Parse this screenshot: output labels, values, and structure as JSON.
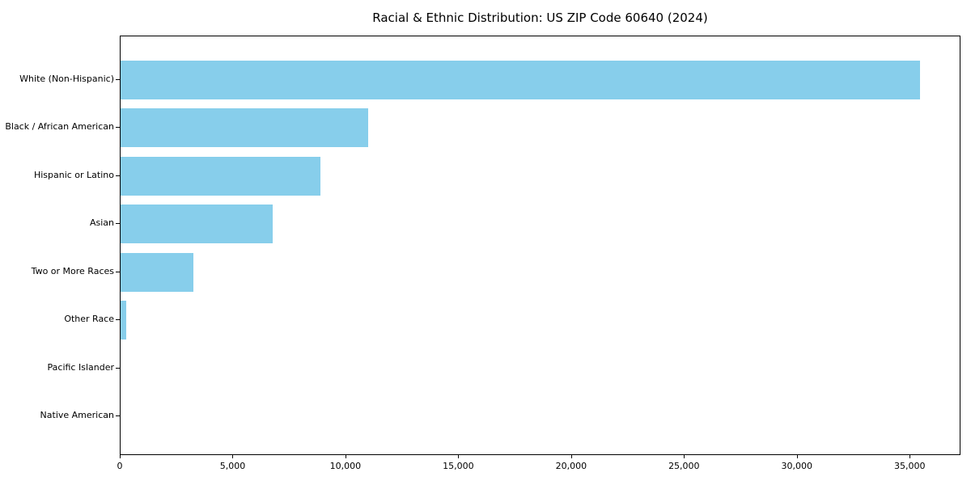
{
  "figure": {
    "title": "Racial & Ethnic Distribution: US ZIP Code 60640 (2024)"
  },
  "chart_data": {
    "type": "bar",
    "orientation": "horizontal",
    "title": "Racial & Ethnic Distribution: US ZIP Code 60640 (2024)",
    "categories": [
      "White (Non-Hispanic)",
      "Black / African American",
      "Hispanic or Latino",
      "Asian",
      "Two or More Races",
      "Other Race",
      "Pacific Islander",
      "Native American"
    ],
    "values": [
      35430,
      10960,
      8840,
      6750,
      3230,
      240,
      0,
      0
    ],
    "xlabel": "",
    "ylabel": "",
    "xlim": [
      0,
      37250
    ],
    "xticks": [
      0,
      5000,
      10000,
      15000,
      20000,
      25000,
      30000,
      35000
    ],
    "xtick_labels": [
      "0",
      "5,000",
      "10,000",
      "15,000",
      "20,000",
      "25,000",
      "30,000",
      "35,000"
    ],
    "bar_color": "#87CEEB",
    "grid": false,
    "legend": null
  }
}
